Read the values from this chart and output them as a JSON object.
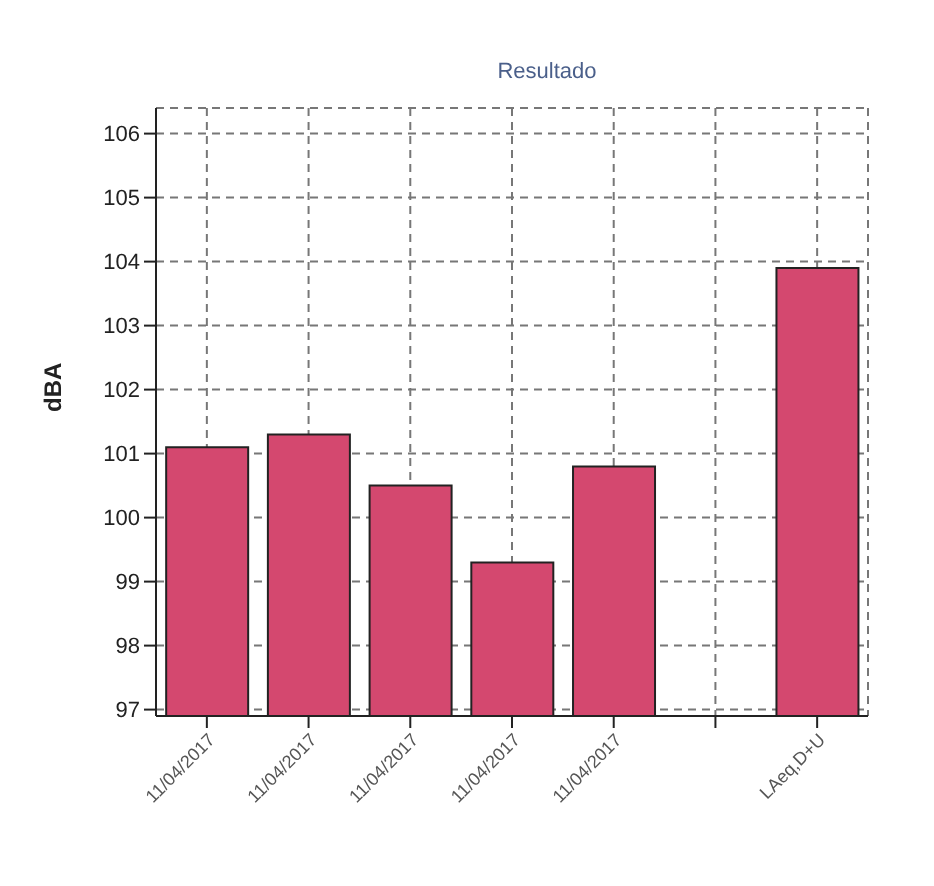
{
  "chart_data": {
    "type": "bar",
    "title": "Resultado",
    "ylabel": "dBA",
    "categories": [
      "11/04/2017",
      "11/04/2017",
      "11/04/2017",
      "11/04/2017",
      "11/04/2017",
      null,
      "LAeq,D+U"
    ],
    "values": [
      101.1,
      101.3,
      100.5,
      99.3,
      100.8,
      null,
      103.9
    ],
    "color": "#d4486f",
    "ylim": [
      96.9,
      106.4
    ],
    "yticks": [
      97,
      98,
      99,
      100,
      101,
      102,
      103,
      104,
      105,
      106
    ],
    "grid": true
  }
}
